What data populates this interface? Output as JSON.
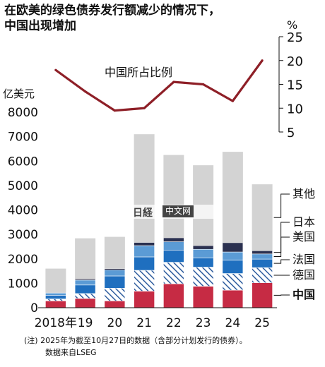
{
  "title_lines": [
    "在欧美的绿色债券发行额减少的情况下，",
    "中国出现增加"
  ],
  "footnote_lines": [
    "(注) 2025年为截至10月27日的数据（含部分计划发行的债券）。",
    "数据来自LSEG"
  ],
  "watermark": {
    "mark": "日経",
    "badge": "中文网"
  },
  "colors": {
    "中国": "#c62b44",
    "德国": "#2f5d9e",
    "法国": "#1f6fbf",
    "美国": "#5b9bd5",
    "日本": "#2b3150",
    "其他": "#d3d3d3",
    "line": "#8e1f27"
  },
  "chart_data": {
    "type": "bar",
    "stacked": true,
    "categories": [
      "2018年",
      "19",
      "20",
      "21",
      "22",
      "23",
      "24",
      "25"
    ],
    "y_unit": "亿美元",
    "ylim": [
      0,
      8000
    ],
    "yticks": [
      0,
      1000,
      2000,
      3000,
      4000,
      5000,
      6000,
      7000,
      8000
    ],
    "series": [
      {
        "name": "中国",
        "values": [
          280,
          380,
          280,
          680,
          980,
          880,
          720,
          1020
        ]
      },
      {
        "name": "德国",
        "values": [
          80,
          200,
          520,
          850,
          880,
          780,
          680,
          620
        ]
      },
      {
        "name": "法国",
        "values": [
          150,
          350,
          500,
          550,
          500,
          380,
          550,
          350
        ]
      },
      {
        "name": "美国",
        "values": [
          90,
          200,
          240,
          460,
          340,
          350,
          330,
          210
        ]
      },
      {
        "name": "日本",
        "values": [
          20,
          50,
          60,
          130,
          160,
          150,
          380,
          130
        ]
      },
      {
        "name": "其他",
        "values": [
          980,
          1660,
          1300,
          4430,
          3390,
          3290,
          3720,
          2720
        ]
      }
    ],
    "line_series": {
      "name": "中国所占比例",
      "unit": "%",
      "values": [
        18,
        13.5,
        9.5,
        10,
        15.5,
        15,
        11.5,
        20
      ],
      "ylim": [
        5,
        25
      ],
      "yticks": [
        5,
        10,
        15,
        20,
        25
      ]
    }
  }
}
